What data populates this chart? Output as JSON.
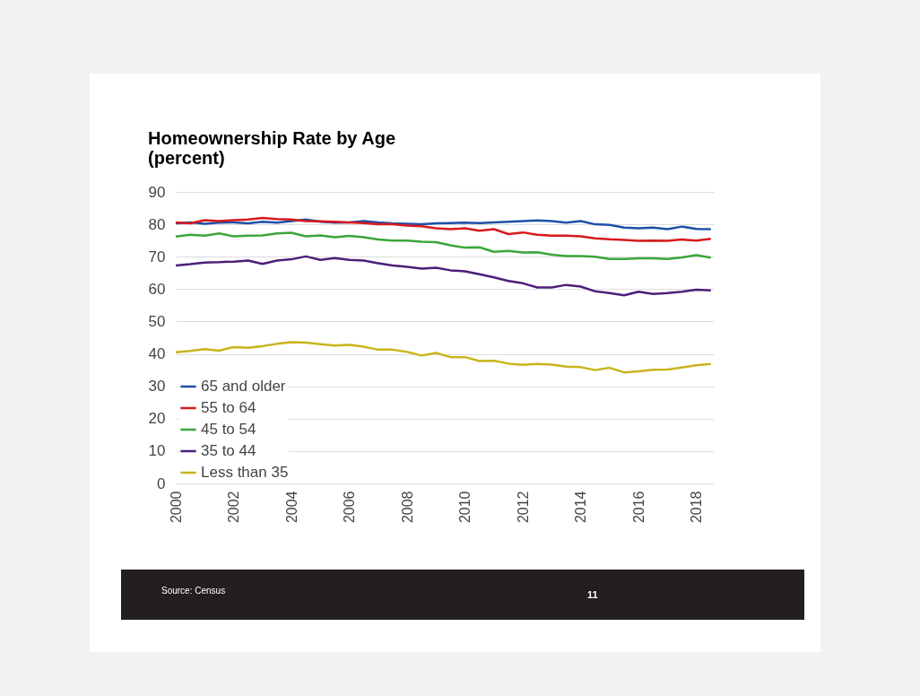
{
  "chart_data": {
    "type": "line",
    "title": "Homeownership Rate by Age",
    "subtitle": "(percent)",
    "x": [
      2000,
      2000.5,
      2001,
      2001.5,
      2002,
      2002.5,
      2003,
      2003.5,
      2004,
      2004.5,
      2005,
      2005.5,
      2006,
      2006.5,
      2007,
      2007.5,
      2008,
      2008.5,
      2009,
      2009.5,
      2010,
      2010.5,
      2011,
      2011.5,
      2012,
      2012.5,
      2013,
      2013.5,
      2014,
      2014.5,
      2015,
      2015.5,
      2016,
      2016.5,
      2017,
      2017.5,
      2018,
      2018.5
    ],
    "series": [
      {
        "name": "65 and older",
        "color": "#1f4fa8",
        "values": [
          80.3,
          80.6,
          80.2,
          80.5,
          80.6,
          80.3,
          80.8,
          80.5,
          81.0,
          81.5,
          80.8,
          80.5,
          80.6,
          81.0,
          80.6,
          80.3,
          80.2,
          80.0,
          80.3,
          80.4,
          80.5,
          80.4,
          80.6,
          80.8,
          81.0,
          81.2,
          81.0,
          80.5,
          81.0,
          80.0,
          79.8,
          79.0,
          78.8,
          79.0,
          78.5,
          79.3,
          78.6,
          78.5
        ]
      },
      {
        "name": "55 to 64",
        "color": "#d7191c",
        "values": [
          80.6,
          80.3,
          81.3,
          81.0,
          81.3,
          81.5,
          82.0,
          81.6,
          81.5,
          81.0,
          80.9,
          80.8,
          80.6,
          80.4,
          80.0,
          80.0,
          79.6,
          79.4,
          78.8,
          78.5,
          78.8,
          78.0,
          78.5,
          77.0,
          77.5,
          76.8,
          76.5,
          76.5,
          76.3,
          75.7,
          75.4,
          75.2,
          74.9,
          75.0,
          74.9,
          75.3,
          75.0,
          75.5
        ]
      },
      {
        "name": "45 to 54",
        "color": "#3aa63a",
        "values": [
          76.2,
          76.8,
          76.5,
          77.2,
          76.3,
          76.5,
          76.6,
          77.2,
          77.4,
          76.3,
          76.6,
          76.0,
          76.4,
          76.0,
          75.3,
          75.0,
          75.0,
          74.6,
          74.5,
          73.5,
          72.8,
          72.9,
          71.5,
          71.8,
          71.3,
          71.4,
          70.6,
          70.2,
          70.2,
          70.0,
          69.3,
          69.3,
          69.5,
          69.5,
          69.3,
          69.8,
          70.5,
          69.7
        ]
      },
      {
        "name": "35 to 44",
        "color": "#4b1f7a",
        "values": [
          67.3,
          67.7,
          68.2,
          68.3,
          68.5,
          68.8,
          67.8,
          68.8,
          69.2,
          70.1,
          69.0,
          69.6,
          69.0,
          68.8,
          68.0,
          67.3,
          66.9,
          66.3,
          66.6,
          65.8,
          65.5,
          64.6,
          63.6,
          62.5,
          61.8,
          60.5,
          60.5,
          61.3,
          60.8,
          59.3,
          58.8,
          58.1,
          59.2,
          58.5,
          58.8,
          59.2,
          59.8,
          59.6
        ]
      },
      {
        "name": "Less than 35",
        "color": "#c8b41a",
        "values": [
          40.5,
          40.9,
          41.5,
          41.0,
          42.1,
          41.9,
          42.4,
          43.1,
          43.6,
          43.5,
          43.0,
          42.6,
          42.8,
          42.2,
          41.3,
          41.3,
          40.6,
          39.5,
          40.3,
          39.0,
          39.0,
          37.8,
          37.9,
          37.0,
          36.6,
          36.9,
          36.7,
          36.1,
          35.9,
          35.0,
          35.7,
          34.3,
          34.6,
          35.1,
          35.2,
          35.8,
          36.5,
          36.9
        ]
      }
    ],
    "xlim": [
      2000,
      2018.6
    ],
    "xticks": [
      2000,
      2002,
      2004,
      2006,
      2008,
      2010,
      2012,
      2014,
      2016,
      2018
    ],
    "ylim": [
      0,
      90
    ],
    "yticks": [
      0,
      10,
      20,
      30,
      40,
      50,
      60,
      70,
      80,
      90
    ],
    "grid": "y",
    "legend": "bottom left",
    "marker": "none",
    "line_style": "solid",
    "annotations": [
      "Source: Census",
      "11"
    ]
  }
}
